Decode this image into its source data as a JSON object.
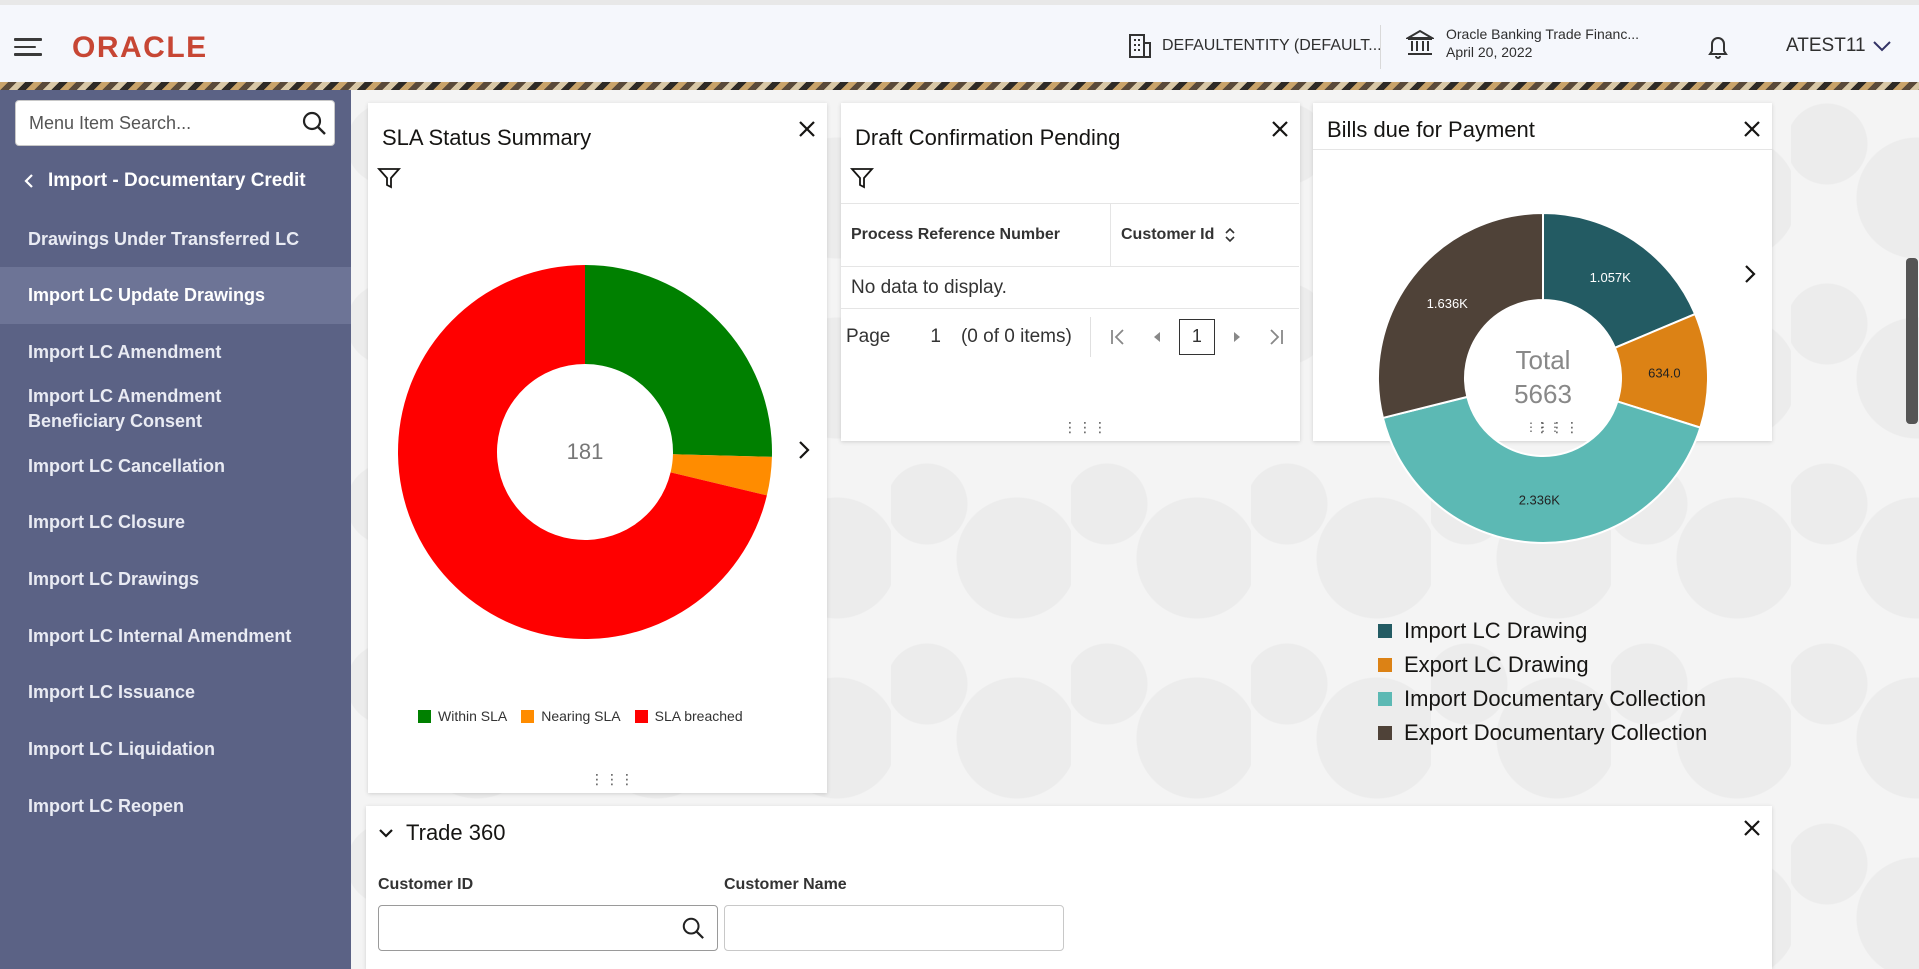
{
  "header": {
    "logo": "ORACLE",
    "entity": "DEFAULTENTITY (DEFAULT...",
    "branch_name": "Oracle Banking Trade Financ...",
    "branch_date": "April 20, 2022",
    "user": "ATEST11"
  },
  "sidebar": {
    "search_placeholder": "Menu Item Search...",
    "back_label": "Import - Documentary Credit",
    "items": [
      {
        "label": "Drawings Under Transferred LC"
      },
      {
        "label": "Import LC Update Drawings"
      },
      {
        "label": "Import LC Amendment"
      },
      {
        "label": "Import LC Amendment Beneficiary Consent"
      },
      {
        "label": "Import LC Cancellation"
      },
      {
        "label": "Import LC Closure"
      },
      {
        "label": "Import LC Drawings"
      },
      {
        "label": "Import LC Internal Amendment"
      },
      {
        "label": "Import LC Issuance"
      },
      {
        "label": "Import LC Liquidation"
      },
      {
        "label": "Import LC Reopen"
      }
    ],
    "active_index": 1
  },
  "sla_card": {
    "title": "SLA Status Summary",
    "center_value": "181",
    "legend": [
      "Within SLA",
      "Nearing SLA",
      "SLA breached"
    ]
  },
  "draft_card": {
    "title": "Draft Confirmation Pending",
    "columns": [
      "Process Reference Number",
      "Customer Id"
    ],
    "no_data": "No data to display.",
    "page_label": "Page",
    "page_number": "1",
    "items_text": "(0 of 0 items)",
    "current_page": "1"
  },
  "bills_card": {
    "title": "Bills due for Payment",
    "center_label": "Total",
    "center_value": "5663"
  },
  "chart_data": [
    {
      "type": "pie",
      "title": "SLA Status Summary",
      "categories": [
        "Within SLA",
        "Nearing SLA",
        "SLA breached"
      ],
      "values": [
        46,
        6,
        129
      ],
      "colors": [
        "#008000",
        "#ff8c00",
        "#ff0000"
      ],
      "center_text": "181",
      "legend_position": "bottom"
    },
    {
      "type": "pie",
      "title": "Bills due for Payment",
      "categories": [
        "Import LC Drawing",
        "Export LC Drawing",
        "Import Documentary Collection",
        "Export Documentary Collection"
      ],
      "values": [
        1057,
        634,
        2336,
        1636
      ],
      "labels": [
        "1.057K",
        "634.0",
        "2.336K",
        "1.636K"
      ],
      "colors": [
        "#235b63",
        "#dc8215",
        "#5cb9b4",
        "#4f4238"
      ],
      "center_text": "Total 5663",
      "legend_position": "bottom"
    }
  ],
  "trade360": {
    "title": "Trade 360",
    "customer_id_label": "Customer ID",
    "customer_name_label": "Customer Name",
    "customer_id_value": "",
    "customer_name_value": ""
  }
}
